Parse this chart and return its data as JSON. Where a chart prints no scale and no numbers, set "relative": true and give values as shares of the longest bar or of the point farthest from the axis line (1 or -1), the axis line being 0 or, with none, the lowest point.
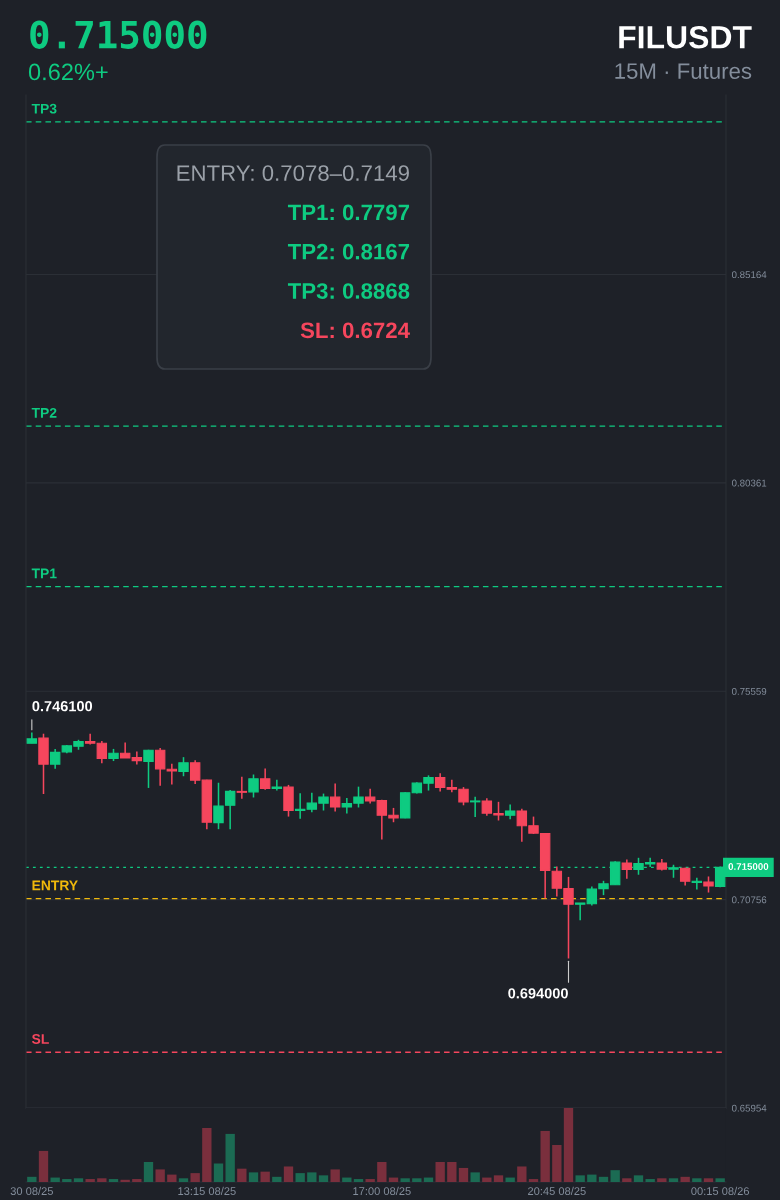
{
  "chart_data": [
    {
      "type": "candlestick",
      "title": "FILUSDT",
      "subtitle": "15M · Futures",
      "annotations": [
        "0.715000",
        "0.62%+",
        "ENTRY: 0.7078–0.7149",
        "TP1: 0.7797",
        "TP2: 0.8167",
        "TP3: 0.8868",
        "SL: 0.6724",
        "0.746100",
        "0.694000"
      ],
      "categories": [
        null,
        null,
        null,
        null,
        null,
        null,
        null,
        null,
        null,
        null,
        null,
        null,
        null,
        null,
        null,
        null,
        null,
        null,
        null,
        null,
        null,
        null,
        null,
        null,
        null,
        null,
        null,
        null,
        null,
        null,
        null,
        null,
        null,
        null,
        null,
        null,
        null,
        null,
        null,
        null,
        null,
        null,
        null,
        null,
        null,
        null,
        null,
        null,
        null,
        null,
        null,
        null,
        null,
        null,
        null,
        null,
        null,
        null,
        null,
        null
      ],
      "ohlc": [
        [
          0.7436,
          0.7461,
          0.7436,
          0.7446
        ],
        [
          0.7448,
          0.7458,
          0.7319,
          0.7388
        ],
        [
          0.7388,
          0.7423,
          0.7377,
          0.7415
        ],
        [
          0.7416,
          0.7432,
          0.7413,
          0.743
        ],
        [
          0.7429,
          0.7444,
          0.7421,
          0.744
        ],
        [
          0.744,
          0.7458,
          0.7433,
          0.7436
        ],
        [
          0.7436,
          0.7441,
          0.739,
          0.7401
        ],
        [
          0.7401,
          0.7423,
          0.7395,
          0.7413
        ],
        [
          0.7413,
          0.7438,
          0.7402,
          0.7402
        ],
        [
          0.7403,
          0.7417,
          0.7387,
          0.7396
        ],
        [
          0.7394,
          0.7421,
          0.7333,
          0.742
        ],
        [
          0.742,
          0.7425,
          0.7338,
          0.7377
        ],
        [
          0.7376,
          0.7389,
          0.7341,
          0.7372
        ],
        [
          0.7371,
          0.7404,
          0.736,
          0.7391
        ],
        [
          0.7391,
          0.7397,
          0.7342,
          0.7351
        ],
        [
          0.7351,
          0.7352,
          0.7238,
          0.7254
        ],
        [
          0.7253,
          0.7345,
          0.7238,
          0.7291
        ],
        [
          0.7293,
          0.7328,
          0.7238,
          0.7325
        ],
        [
          0.7325,
          0.7359,
          0.7308,
          0.7323
        ],
        [
          0.7324,
          0.7364,
          0.7311,
          0.7354
        ],
        [
          0.7354,
          0.7378,
          0.7329,
          0.7332
        ],
        [
          0.7332,
          0.7352,
          0.7327,
          0.7335
        ],
        [
          0.7335,
          0.734,
          0.7267,
          0.7281
        ],
        [
          0.7281,
          0.7321,
          0.7262,
          0.7284
        ],
        [
          0.7284,
          0.7322,
          0.7277,
          0.7298
        ],
        [
          0.7298,
          0.732,
          0.7281,
          0.7312
        ],
        [
          0.7312,
          0.7343,
          0.7279,
          0.7289
        ],
        [
          0.7289,
          0.731,
          0.7274,
          0.7297
        ],
        [
          0.7298,
          0.7336,
          0.7288,
          0.7312
        ],
        [
          0.7312,
          0.7331,
          0.7297,
          0.7303
        ],
        [
          0.7304,
          0.7306,
          0.7214,
          0.727
        ],
        [
          0.727,
          0.7287,
          0.7254,
          0.7264
        ],
        [
          0.7264,
          0.7323,
          0.7263,
          0.7322
        ],
        [
          0.7322,
          0.7346,
          0.732,
          0.7344
        ],
        [
          0.7344,
          0.7362,
          0.7327,
          0.7357
        ],
        [
          0.7357,
          0.7367,
          0.7325,
          0.7334
        ],
        [
          0.7334,
          0.7352,
          0.7323,
          0.733
        ],
        [
          0.733,
          0.7335,
          0.7293,
          0.7301
        ],
        [
          0.7301,
          0.7313,
          0.7266,
          0.7303
        ],
        [
          0.7303,
          0.7309,
          0.7269,
          0.7275
        ],
        [
          0.7274,
          0.7301,
          0.7258,
          0.7271
        ],
        [
          0.727,
          0.7295,
          0.7261,
          0.728
        ],
        [
          0.728,
          0.7285,
          0.7209,
          0.7246
        ],
        [
          0.7246,
          0.7267,
          0.7227,
          0.7229
        ],
        [
          0.7228,
          0.7228,
          0.7078,
          0.7143
        ],
        [
          0.7141,
          0.7152,
          0.7083,
          0.7102
        ],
        [
          0.7101,
          0.7128,
          0.694,
          0.7065
        ],
        [
          0.7065,
          0.7068,
          0.7028,
          0.7068
        ],
        [
          0.7066,
          0.7106,
          0.7062,
          0.71
        ],
        [
          0.7101,
          0.7119,
          0.7086,
          0.7112
        ],
        [
          0.711,
          0.7164,
          0.711,
          0.7162
        ],
        [
          0.716,
          0.7168,
          0.7124,
          0.7145
        ],
        [
          0.7145,
          0.7172,
          0.7133,
          0.7159
        ],
        [
          0.7158,
          0.7172,
          0.7151,
          0.7161
        ],
        [
          0.716,
          0.7169,
          0.7143,
          0.7146
        ],
        [
          0.7146,
          0.7156,
          0.7126,
          0.7149
        ],
        [
          0.7148,
          0.7149,
          0.7108,
          0.7118
        ],
        [
          0.7115,
          0.7126,
          0.7099,
          0.7118
        ],
        [
          0.7116,
          0.7129,
          0.7092,
          0.7107
        ],
        [
          0.7106,
          0.7152,
          0.7104,
          0.715
        ]
      ],
      "colors": [
        "#0ecb81",
        "#f6465d",
        "#0ecb81",
        "#0ecb81",
        "#0ecb81",
        "#f6465d",
        "#f6465d",
        "#0ecb81",
        "#f6465d",
        "#f6465d",
        "#0ecb81",
        "#f6465d",
        "#f6465d",
        "#0ecb81",
        "#f6465d",
        "#f6465d",
        "#0ecb81",
        "#0ecb81",
        "#f6465d",
        "#0ecb81",
        "#f6465d",
        "#0ecb81",
        "#f6465d",
        "#0ecb81",
        "#0ecb81",
        "#0ecb81",
        "#f6465d",
        "#0ecb81",
        "#0ecb81",
        "#f6465d",
        "#f6465d",
        "#f6465d",
        "#0ecb81",
        "#0ecb81",
        "#0ecb81",
        "#f6465d",
        "#f6465d",
        "#f6465d",
        "#0ecb81",
        "#f6465d",
        "#f6465d",
        "#0ecb81",
        "#f6465d",
        "#f6465d",
        "#f6465d",
        "#f6465d",
        "#f6465d",
        "#0ecb81",
        "#0ecb81",
        "#0ecb81",
        "#0ecb81",
        "#f6465d",
        "#0ecb81",
        "#0ecb81",
        "#f6465d",
        "#0ecb81",
        "#f6465d",
        "#0ecb81",
        "#f6465d",
        "#0ecb81"
      ],
      "ylim": [
        0.65954,
        0.893
      ],
      "yticks": [
        0.65954,
        0.70756,
        0.75559,
        0.80361,
        0.85164
      ],
      "ref_lines": [
        {
          "axis": "y",
          "value": 0.8868,
          "label": "TP3",
          "color": "#0ecb81",
          "line_style": "dashed"
        },
        {
          "axis": "y",
          "value": 0.8167,
          "label": "TP2",
          "color": "#0ecb81",
          "line_style": "dashed"
        },
        {
          "axis": "y",
          "value": 0.7797,
          "label": "TP1",
          "color": "#0ecb81",
          "line_style": "dashed"
        },
        {
          "axis": "y",
          "value": 0.715,
          "label": "0.715000",
          "color": "#0ecb81",
          "line_style": "dotted"
        },
        {
          "axis": "y",
          "value": 0.7078,
          "label": "ENTRY",
          "color": "#f0b90b",
          "line_style": "dashed"
        },
        {
          "axis": "y",
          "value": 0.6724,
          "label": "SL",
          "color": "#f6465d",
          "line_style": "dashed"
        }
      ],
      "grid": true,
      "tick_labels": "y"
    },
    {
      "type": "bar",
      "relative": true,
      "categories": [
        "30 08/25",
        null,
        null,
        null,
        null,
        null,
        null,
        null,
        null,
        null,
        null,
        null,
        null,
        null,
        null,
        "13:15 08/25",
        null,
        null,
        null,
        null,
        null,
        null,
        null,
        null,
        null,
        null,
        null,
        null,
        null,
        null,
        "17:00 08/25",
        null,
        null,
        null,
        null,
        null,
        null,
        null,
        null,
        null,
        null,
        null,
        null,
        null,
        null,
        "20:45 08/25",
        null,
        null,
        null,
        null,
        null,
        null,
        null,
        null,
        null,
        null,
        null,
        null,
        null,
        "00:15 08/26"
      ],
      "values": [
        0.07,
        0.42,
        0.06,
        0.04,
        0.05,
        0.04,
        0.05,
        0.04,
        0.03,
        0.04,
        0.27,
        0.17,
        0.1,
        0.05,
        0.12,
        0.73,
        0.25,
        0.65,
        0.18,
        0.13,
        0.14,
        0.07,
        0.21,
        0.12,
        0.13,
        0.09,
        0.17,
        0.06,
        0.04,
        0.04,
        0.27,
        0.06,
        0.05,
        0.05,
        0.06,
        0.27,
        0.27,
        0.19,
        0.13,
        0.06,
        0.09,
        0.06,
        0.21,
        0.04,
        0.69,
        0.5,
        1,
        0.09,
        0.1,
        0.07,
        0.16,
        0.05,
        0.09,
        0.04,
        0.05,
        0.05,
        0.07,
        0.05,
        0.05,
        0.05
      ],
      "colors": [
        "#1b6b53",
        "#7a2f3d",
        "#1b6b53",
        "#1b6b53",
        "#1b6b53",
        "#7a2f3d",
        "#7a2f3d",
        "#1b6b53",
        "#7a2f3d",
        "#7a2f3d",
        "#1b6b53",
        "#7a2f3d",
        "#7a2f3d",
        "#1b6b53",
        "#7a2f3d",
        "#7a2f3d",
        "#1b6b53",
        "#1b6b53",
        "#7a2f3d",
        "#1b6b53",
        "#7a2f3d",
        "#1b6b53",
        "#7a2f3d",
        "#1b6b53",
        "#1b6b53",
        "#1b6b53",
        "#7a2f3d",
        "#1b6b53",
        "#1b6b53",
        "#7a2f3d",
        "#7a2f3d",
        "#7a2f3d",
        "#1b6b53",
        "#1b6b53",
        "#1b6b53",
        "#7a2f3d",
        "#7a2f3d",
        "#7a2f3d",
        "#1b6b53",
        "#7a2f3d",
        "#7a2f3d",
        "#1b6b53",
        "#7a2f3d",
        "#7a2f3d",
        "#7a2f3d",
        "#7a2f3d",
        "#7a2f3d",
        "#1b6b53",
        "#1b6b53",
        "#1b6b53",
        "#1b6b53",
        "#7a2f3d",
        "#1b6b53",
        "#1b6b53",
        "#7a2f3d",
        "#1b6b53",
        "#7a2f3d",
        "#1b6b53",
        "#7a2f3d",
        "#1b6b53"
      ],
      "tick_labels": "x"
    }
  ]
}
